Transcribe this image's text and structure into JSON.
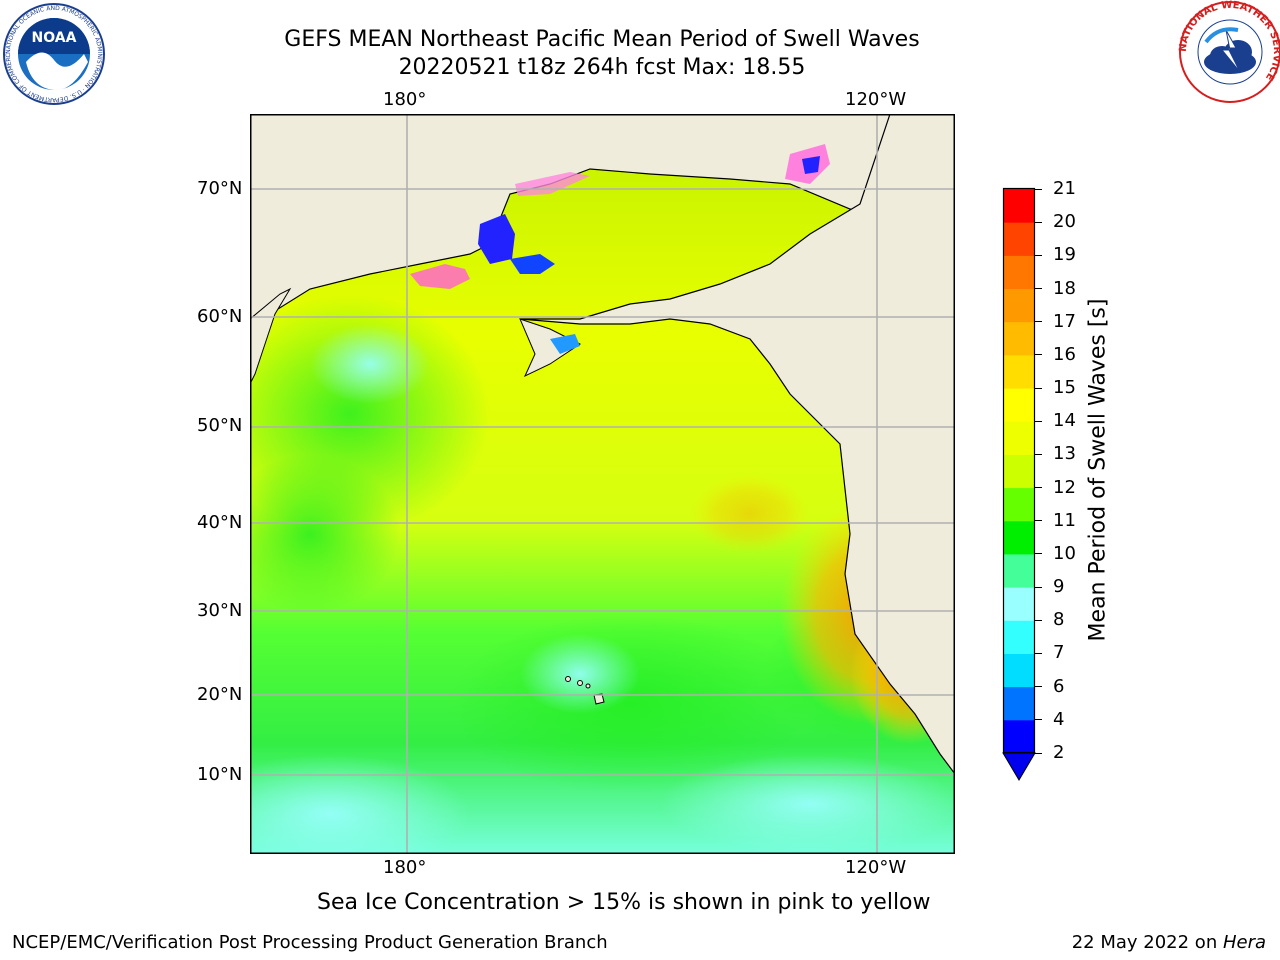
{
  "header": {
    "title_line1": "GEFS MEAN Northeast Pacific Mean Period of Swell Waves",
    "title_line2": "20220521 t18z 264h fcst   Max: 18.55"
  },
  "logos": {
    "noaa_text": "NOAA",
    "noaa_ring": "NATIONAL OCEANIC AND ATMOSPHERIC ADMINISTRATION · U.S. DEPARTMENT OF COMMERCE",
    "nws_ring": "NATIONAL WEATHER SERVICE"
  },
  "map": {
    "top_lon_labels": [
      "180°",
      "120°W"
    ],
    "bottom_lon_labels": [
      "180°",
      "120°W"
    ],
    "lat_labels": [
      "70°N",
      "60°N",
      "50°N",
      "40°N",
      "30°N",
      "20°N",
      "10°N"
    ],
    "colors": {
      "land": "#efecdc",
      "grid": "#b0b0b0",
      "coast": "#000000"
    }
  },
  "colorbar": {
    "label": "Mean Period of Swell Waves [s]",
    "ticks": [
      "2",
      "4",
      "6",
      "7",
      "8",
      "9",
      "10",
      "11",
      "12",
      "13",
      "14",
      "15",
      "16",
      "17",
      "18",
      "19",
      "20",
      "21"
    ],
    "colors": [
      "#0000ff",
      "#0073ff",
      "#00ddff",
      "#33ffff",
      "#99ffff",
      "#44ff99",
      "#00ee00",
      "#66ff00",
      "#ccff00",
      "#eeff00",
      "#ffff00",
      "#ffdd00",
      "#ffbb00",
      "#ff9900",
      "#ff7700",
      "#ff4400",
      "#ff0000"
    ],
    "under_color": "#0000ee"
  },
  "notes": {
    "ice_note": "Sea Ice Concentration > 15% is shown in pink to yellow"
  },
  "footer": {
    "left": "NCEP/EMC/Verification Post Processing Product Generation Branch",
    "right_prefix": "22 May 2022 on ",
    "right_host": "Hera"
  }
}
